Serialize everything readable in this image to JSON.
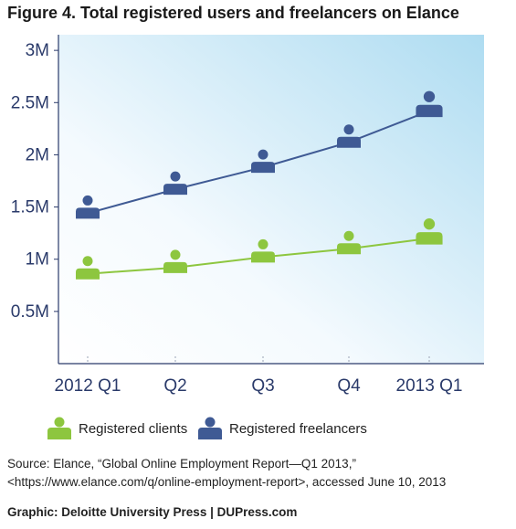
{
  "title": "Figure 4. Total registered users and freelancers on Elance",
  "chart_data": {
    "type": "line",
    "title": "Figure 4. Total registered users and freelancers on Elance",
    "categories": [
      "2012 Q1",
      "Q2",
      "Q3",
      "Q4",
      "2013 Q1"
    ],
    "series": [
      {
        "name": "Registered clients",
        "color": "#8dc63f",
        "values": [
          0.86,
          0.92,
          1.02,
          1.1,
          1.2
        ]
      },
      {
        "name": "Registered freelancers",
        "color": "#3f5a94",
        "values": [
          1.44,
          1.67,
          1.88,
          2.12,
          2.42
        ]
      }
    ],
    "y_ticks": [
      {
        "value": 0.5,
        "label": "0.5M"
      },
      {
        "value": 1,
        "label": "1M"
      },
      {
        "value": 1.5,
        "label": "1.5M"
      },
      {
        "value": 2,
        "label": "2M"
      },
      {
        "value": 2.5,
        "label": "2.5M"
      },
      {
        "value": 3,
        "label": "3M"
      }
    ],
    "ylim": [
      0,
      3.15
    ],
    "marker": "person-icon",
    "legend_position": "bottom-left",
    "background": "gradient-white-to-light-blue"
  },
  "legend": {
    "clients": "Registered clients",
    "freelancers": "Registered freelancers"
  },
  "source": {
    "line1": "Source: Elance, “Global Online Employment Report—Q1 2013,”",
    "line2": "<https://www.elance.com/q/online-employment-report>, accessed June 10, 2013"
  },
  "credit": "Graphic: Deloitte University Press  |  DUPress.com"
}
